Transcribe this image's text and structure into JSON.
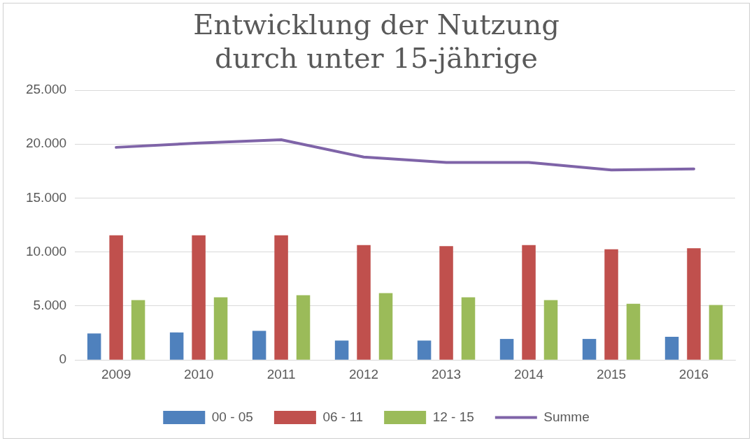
{
  "chart_data": {
    "type": "bar",
    "title": "Entwicklung der Nutzung\ndurch unter 15-jährige",
    "categories": [
      "2009",
      "2010",
      "2011",
      "2012",
      "2013",
      "2014",
      "2015",
      "2016"
    ],
    "series": [
      {
        "name": "00 - 05",
        "color": "#4f81bd",
        "values": [
          2450,
          2550,
          2700,
          1800,
          1800,
          1950,
          1950,
          2150
        ]
      },
      {
        "name": "06 - 11",
        "color": "#c0504d",
        "values": [
          11550,
          11550,
          11550,
          10650,
          10550,
          10650,
          10250,
          10350
        ]
      },
      {
        "name": "12 - 15",
        "color": "#9bbb59",
        "values": [
          5550,
          5800,
          6000,
          6200,
          5800,
          5550,
          5200,
          5100
        ]
      },
      {
        "name": "Summe",
        "type": "line",
        "color": "#7f64a8",
        "values": [
          19700,
          20100,
          20400,
          18800,
          18300,
          18300,
          17600,
          17700
        ]
      }
    ],
    "ylim": [
      0,
      25000
    ],
    "yticks": [
      0,
      {
        "value": 5000,
        "label": "5.000"
      },
      {
        "value": 10000,
        "label": "10.000"
      },
      {
        "value": 15000,
        "label": "15.000"
      },
      {
        "value": 20000,
        "label": "20.000"
      },
      {
        "value": 25000,
        "label": "25.000"
      }
    ],
    "grid": "y",
    "legend": "bottom",
    "marker": "none"
  }
}
